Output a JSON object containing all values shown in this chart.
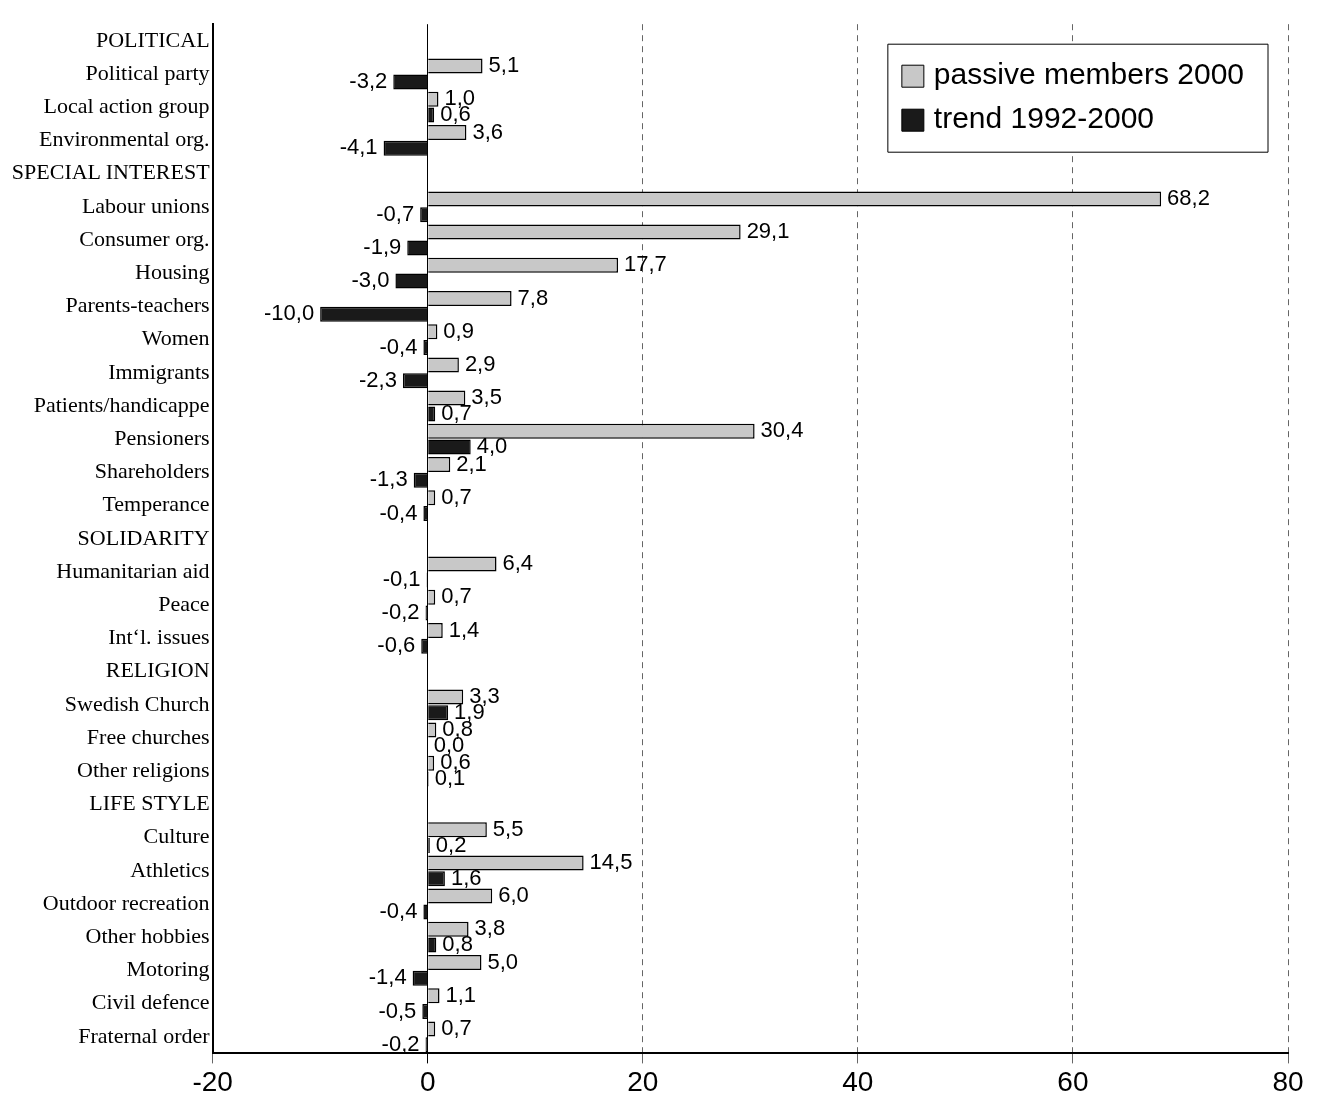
{
  "chart_data": {
    "type": "bar",
    "orientation": "horizontal",
    "categories": [
      "POLITICAL",
      "Political party",
      "Local action group",
      "Environmental org.",
      "SPECIAL INTEREST",
      "Labour unions",
      "Consumer org.",
      "Housing",
      "Parents-teachers",
      "Women",
      "Immigrants",
      "Patients/handicappe",
      "Pensioners",
      "Shareholders",
      "Temperance",
      "SOLIDARITY",
      "Humanitarian aid",
      "Peace",
      "Int‘l. issues",
      "RELIGION",
      "Swedish Church",
      "Free churches",
      "Other religions",
      "LIFE STYLE",
      "Culture",
      "Athletics",
      "Outdoor recreation",
      "Other hobbies",
      "Motoring",
      "Civil defence",
      "Fraternal order"
    ],
    "series": [
      {
        "name": "passive members 2000",
        "color": "#c8c8c8",
        "values": [
          null,
          5.1,
          1.0,
          3.6,
          null,
          68.2,
          29.1,
          17.7,
          7.8,
          0.9,
          2.9,
          3.5,
          30.4,
          2.1,
          0.7,
          null,
          6.4,
          0.7,
          1.4,
          null,
          3.3,
          0.8,
          0.6,
          null,
          5.5,
          14.5,
          6.0,
          3.8,
          5.0,
          1.1,
          0.7
        ],
        "value_labels": [
          null,
          "5,1",
          "1,0",
          "3,6",
          null,
          "68,2",
          "29,1",
          "17,7",
          "7,8",
          "0,9",
          "2,9",
          "3,5",
          "30,4",
          "2,1",
          "0,7",
          null,
          "6,4",
          "0,7",
          "1,4",
          null,
          "3,3",
          "0,8",
          "0,6",
          null,
          "5,5",
          "14,5",
          "6,0",
          "3,8",
          "5,0",
          "1,1",
          "0,7"
        ]
      },
      {
        "name": "trend 1992-2000",
        "color": "#1a1a1a",
        "values": [
          null,
          -3.2,
          0.6,
          -4.1,
          null,
          -0.7,
          -1.9,
          -3.0,
          -10.0,
          -0.4,
          -2.3,
          0.7,
          4.0,
          -1.3,
          -0.4,
          null,
          -0.1,
          -0.2,
          -0.6,
          null,
          1.9,
          0.0,
          0.1,
          null,
          0.2,
          1.6,
          -0.4,
          0.8,
          -1.4,
          -0.5,
          -0.2
        ],
        "value_labels": [
          null,
          "-3,2",
          "0,6",
          "-4,1",
          null,
          "-0,7",
          "-1,9",
          "-3,0",
          "-10,0",
          "-0,4",
          "-2,3",
          "0,7",
          "4,0",
          "-1,3",
          "-0,4",
          null,
          "-0,1",
          "-0,2",
          "-0,6",
          null,
          "1,9",
          "0,0",
          "0,1",
          null,
          "0,2",
          "1,6",
          "-0,4",
          "0,8",
          "-1,4",
          "-0,5",
          "-0,2"
        ]
      }
    ],
    "xlim": [
      -20,
      80
    ],
    "xticks": [
      -20,
      0,
      20,
      40,
      60,
      80
    ],
    "grid": "x",
    "legend": "top right"
  }
}
